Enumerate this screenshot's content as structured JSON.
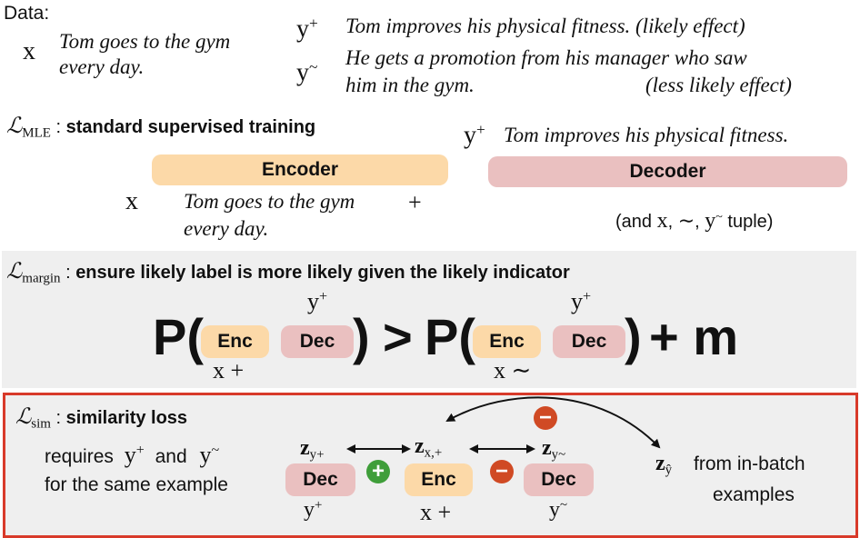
{
  "data_section": {
    "heading": "Data:",
    "x_sym": "x",
    "x_text_line1": "Tom goes to the gym",
    "x_text_line2": "every day.",
    "yplus_sym": "y",
    "yplus_sup": "+",
    "yplus_text": "Tom improves his physical fitness. (likely effect)",
    "ytilde_sym": "y",
    "ytilde_sup": "~",
    "ytilde_text_line1": "He gets a promotion from his manager who saw",
    "ytilde_text_line2a": "him in the gym.",
    "ytilde_text_line2b": "(less likely effect)"
  },
  "mle": {
    "loss_L": "ℒ",
    "loss_sub": "MLE",
    "colon": " : ",
    "title": "standard supervised training",
    "yplus_sym": "y",
    "yplus_sup": "+",
    "yplus_text": "Tom improves his physical fitness.",
    "encoder_label": "Encoder",
    "decoder_label": "Decoder",
    "x_sym": "x",
    "x_text_line1": "Tom goes to the gym",
    "x_text_line2": "every day.",
    "plus": "+",
    "tuple_pre": "(and ",
    "tuple_x": "x",
    "tuple_comma1": ", ",
    "tuple_tilde": "∼",
    "tuple_comma2": ", ",
    "tuple_y": "y",
    "tuple_y_sup": "~",
    "tuple_post": " tuple)"
  },
  "margin": {
    "loss_L": "ℒ",
    "loss_sub": "margin",
    "colon": " : ",
    "title": "ensure likely label is more likely given the likely indicator",
    "p1": "P(",
    "close1": ")",
    "gt": ">",
    "p2": "P(",
    "close2": ")",
    "plus_m": "+ m",
    "enc_label": "Enc",
    "dec_label": "Dec",
    "y_sym": "y",
    "y_sup": "+",
    "x_plus": "x +",
    "x_tilde": "x ∼"
  },
  "sim": {
    "loss_L": "ℒ",
    "loss_sub": "sim",
    "colon": " : ",
    "title": "similarity loss",
    "req_line1a": "requires",
    "req_y1": "y",
    "req_y1_sup": "+",
    "req_and": "and",
    "req_y2": "y",
    "req_y2_sup": "~",
    "req_line2": "for the same example",
    "z": "z",
    "z1_sub": "y+",
    "z2_sub": "x,+",
    "z3_sub": "y~",
    "dec_label": "Dec",
    "enc_label": "Enc",
    "y_sym": "y",
    "y1_sup": "+",
    "x_plus": "x +",
    "y3_sup": "~",
    "plus_circle": "+",
    "minus_circle": "−",
    "zhat_sub": "ŷ",
    "batch_line1": "from in-batch",
    "batch_line2": "examples"
  },
  "colors": {
    "encoder": "#fcd9a8",
    "decoder": "#eac0c0",
    "margin_bg": "#efefef",
    "sim_border": "#d83a2a",
    "plus_green": "#3f9e3a",
    "minus_red": "#d04a24"
  }
}
